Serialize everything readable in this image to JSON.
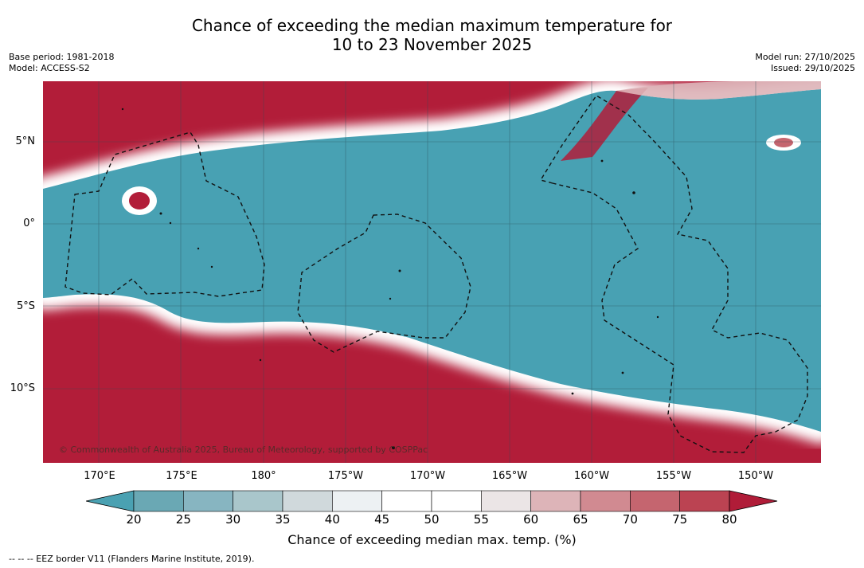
{
  "title": {
    "line1": "Chance of exceeding the median maximum temperature for",
    "line2": "10 to 23 November 2025"
  },
  "meta_left": {
    "base_period": "Base period: 1981-2018",
    "model": "Model: ACCESS-S2"
  },
  "meta_right": {
    "model_run": "Model run: 27/10/2025",
    "issued": "Issued: 29/10/2025"
  },
  "map": {
    "copyright": "© Commonwealth of Australia 2025, Bureau of Meteorology, supported by COSPPac",
    "lon_labels": [
      "170°E",
      "175°E",
      "180°",
      "175°W",
      "170°W",
      "165°W",
      "160°W",
      "155°W",
      "150°W"
    ],
    "lat_labels": [
      "5°N",
      "0°",
      "5°S",
      "10°S"
    ]
  },
  "colorbar": {
    "title": "Chance of exceeding median max. temp. (%)",
    "ticks": [
      "20",
      "25",
      "30",
      "35",
      "40",
      "45",
      "50",
      "55",
      "60",
      "65",
      "70",
      "75",
      "80"
    ],
    "colors": [
      "#6aa8b4",
      "#87b5c1",
      "#a9c6cb",
      "#d0d9dc",
      "#edf1f3",
      "#ffffff",
      "#ffffff",
      "#ebe5e6",
      "#ddb4b8",
      "#d18a91",
      "#c5656f",
      "#bb4352"
    ],
    "under_color": "#4aa1b2",
    "over_color": "#b01c38"
  },
  "colors": {
    "warm": "#b21d39",
    "cool": "#48a1b3"
  },
  "footnote": "--  --  -- EEZ border V11 (Flanders Marine Institute, 2019)."
}
